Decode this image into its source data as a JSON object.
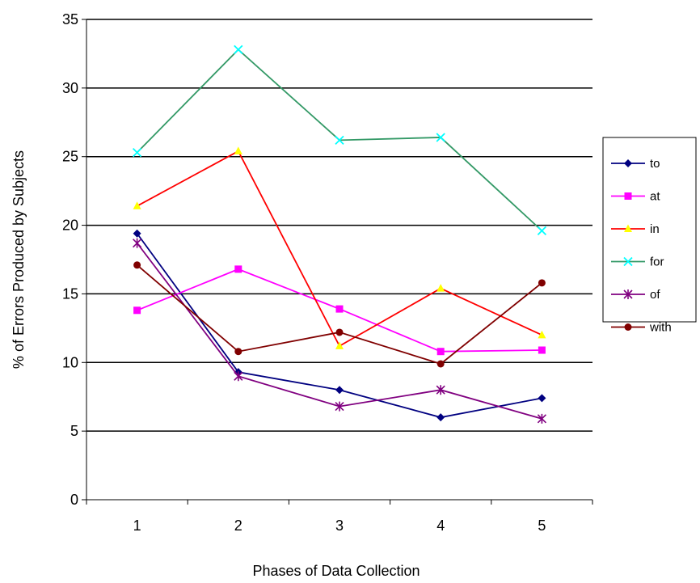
{
  "chart_data": {
    "type": "line",
    "title": "",
    "xlabel": "Phases of Data Collection",
    "ylabel": "% of Errors Produced by Subjects",
    "x": [
      1,
      2,
      3,
      4,
      5
    ],
    "categories": [
      "1",
      "2",
      "3",
      "4",
      "5"
    ],
    "ylim": [
      0,
      35
    ],
    "yticks": [
      0,
      5,
      10,
      15,
      20,
      25,
      30,
      35
    ],
    "grid": true,
    "legend": "right",
    "series": [
      {
        "name": "to",
        "values": [
          19.4,
          9.3,
          8.0,
          6.0,
          7.4
        ],
        "color": "#000080",
        "marker": "diamond"
      },
      {
        "name": "at",
        "values": [
          13.8,
          16.8,
          13.9,
          10.8,
          10.9
        ],
        "color": "#ff00ff",
        "marker": "square"
      },
      {
        "name": "in",
        "values": [
          21.4,
          25.4,
          11.2,
          15.4,
          12.0
        ],
        "color": "#ff0000",
        "marker": "triangle",
        "marker_color": "#ffff00"
      },
      {
        "name": "for",
        "values": [
          25.3,
          32.8,
          26.2,
          26.4,
          19.6
        ],
        "color": "#339966",
        "marker": "x",
        "marker_color": "#00ffff"
      },
      {
        "name": "of",
        "values": [
          18.7,
          9.0,
          6.8,
          8.0,
          5.9
        ],
        "color": "#800080",
        "marker": "star"
      },
      {
        "name": "with",
        "values": [
          17.1,
          10.8,
          12.2,
          9.9,
          15.8
        ],
        "color": "#800000",
        "marker": "circle"
      }
    ]
  }
}
